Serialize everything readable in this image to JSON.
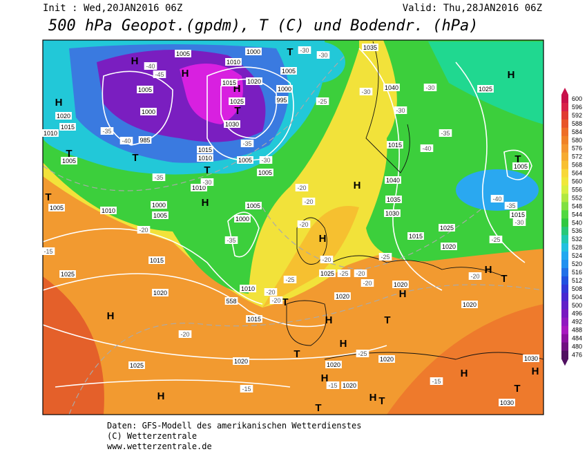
{
  "header": {
    "init": "Init : Wed,20JAN2016 06Z",
    "valid": "Valid: Thu,28JAN2016 06Z",
    "title": "500 hPa Geopot.(gpdm), T (C) und Bodendr. (hPa)"
  },
  "legend": {
    "labels": [
      600,
      596,
      592,
      588,
      584,
      580,
      576,
      572,
      568,
      564,
      560,
      556,
      552,
      548,
      544,
      540,
      536,
      532,
      528,
      524,
      520,
      516,
      512,
      508,
      504,
      500,
      496,
      492,
      488,
      484,
      480,
      476
    ],
    "colors": [
      "#c8104a",
      "#d82048",
      "#e03a30",
      "#e8552a",
      "#ee6e28",
      "#f08228",
      "#f49630",
      "#f6aa30",
      "#f8c030",
      "#f8d838",
      "#f0e83a",
      "#d8f040",
      "#b0e840",
      "#80e040",
      "#50d840",
      "#30c840",
      "#28c878",
      "#20c8b0",
      "#20c0e0",
      "#20a8f0",
      "#2090f0",
      "#2070e8",
      "#2050e0",
      "#3038d8",
      "#4828d0",
      "#6020c8",
      "#7818c0",
      "#9018c0",
      "#a818c0",
      "#8c10a0",
      "#701080",
      "#501060"
    ]
  },
  "map": {
    "centers": [
      "H",
      "H",
      "H",
      "T",
      "T",
      "H",
      "T",
      "T",
      "T",
      "H",
      "T",
      "H",
      "T",
      "H",
      "H",
      "H",
      "T",
      "T",
      "H",
      "T",
      "H",
      "H",
      "T",
      "H",
      "H",
      "H",
      "T",
      "H",
      "T",
      "H",
      "T",
      "H"
    ],
    "pressure_labels": [
      "1005",
      "1000",
      "1010",
      "1015",
      "1020",
      "1005",
      "1005",
      "1000",
      "985",
      "1020",
      "1015",
      "1010",
      "1005",
      "1025",
      "1030",
      "1015",
      "1010",
      "1005",
      "1005",
      "1010",
      "1000",
      "1005",
      "1010",
      "1005",
      "1005",
      "1000",
      "1035",
      "1040",
      "1000",
      "995",
      "1025",
      "1015",
      "1040",
      "1035",
      "1030",
      "1005",
      "1015",
      "1025",
      "1015",
      "1020",
      "1015",
      "1025",
      "1020",
      "1010",
      "1015",
      "1025",
      "1020",
      "1020",
      "1020",
      "1025",
      "1020",
      "1020",
      "1020",
      "1020",
      "1030",
      "1030",
      "558"
    ],
    "temperature_labels": [
      "-40",
      "-45",
      "-35",
      "-40",
      "-35",
      "-30",
      "-35",
      "-30",
      "-30",
      "-30",
      "-25",
      "-30",
      "-30",
      "-30",
      "-35",
      "-40",
      "-20",
      "-20",
      "-20",
      "-20",
      "-35",
      "-40",
      "-35",
      "-30",
      "-25",
      "-25",
      "-20",
      "-25",
      "-20",
      "-20",
      "-25",
      "-20",
      "-20",
      "-15",
      "-20",
      "-25",
      "-15",
      "-15",
      "-15",
      "-20"
    ]
  },
  "footer": {
    "lines": [
      "Daten: GFS-Modell des amerikanischen Wetterdienstes",
      "(C) Wetterzentrale",
      "www.wetterzentrale.de"
    ]
  }
}
